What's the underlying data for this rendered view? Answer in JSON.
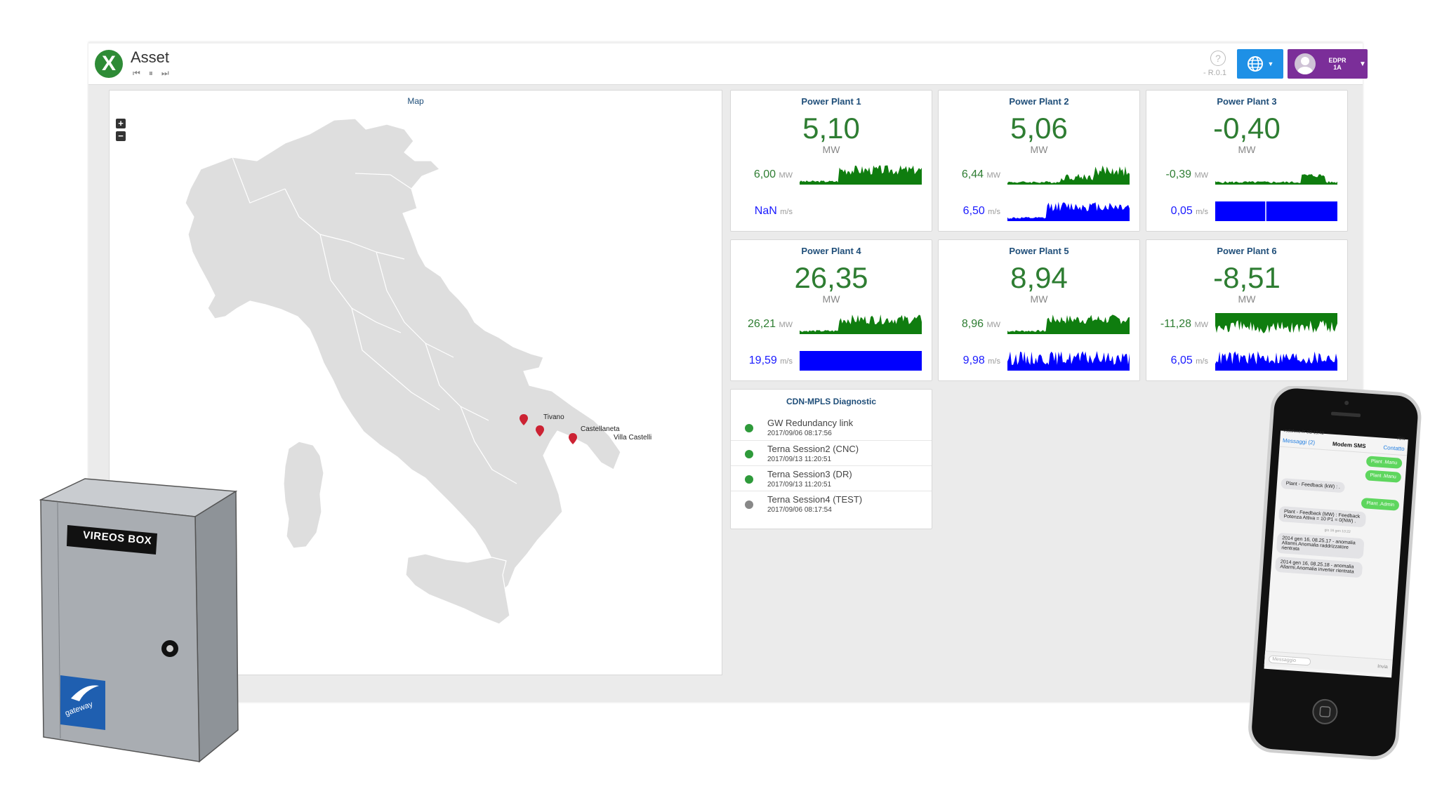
{
  "header": {
    "title": "Asset",
    "version": "- R.0.1",
    "help_icon": "?",
    "user": {
      "line1": "EDPR",
      "line2": "1A"
    }
  },
  "map": {
    "title": "Map",
    "zoom_in": "+",
    "zoom_out": "−",
    "markers": [
      "Tivano",
      "Castellaneta",
      "Villa Castelli"
    ]
  },
  "colors": {
    "power": "#0f7d0f",
    "wind": "#0000ff",
    "ok": "#2e9a3a",
    "off": "#888888",
    "accent": "#1e90e6",
    "user": "#7b2e99"
  },
  "plants": [
    {
      "name": "Power Plant 1",
      "value": "5,10",
      "unit": "MW",
      "row1": "6,00",
      "row1_unit": "MW",
      "row2": "NaN",
      "row2_unit": "m/s"
    },
    {
      "name": "Power Plant 2",
      "value": "5,06",
      "unit": "MW",
      "row1": "6,44",
      "row1_unit": "MW",
      "row2": "6,50",
      "row2_unit": "m/s"
    },
    {
      "name": "Power Plant 3",
      "value": "-0,40",
      "unit": "MW",
      "row1": "-0,39",
      "row1_unit": "MW",
      "row2": "0,05",
      "row2_unit": "m/s"
    },
    {
      "name": "Power Plant 4",
      "value": "26,35",
      "unit": "MW",
      "row1": "26,21",
      "row1_unit": "MW",
      "row2": "19,59",
      "row2_unit": "m/s"
    },
    {
      "name": "Power Plant 5",
      "value": "8,94",
      "unit": "MW",
      "row1": "8,96",
      "row1_unit": "MW",
      "row2": "9,98",
      "row2_unit": "m/s"
    },
    {
      "name": "Power Plant 6",
      "value": "-8,51",
      "unit": "MW",
      "row1": "-11,28",
      "row1_unit": "MW",
      "row2": "6,05",
      "row2_unit": "m/s"
    }
  ],
  "diagnostic": {
    "title": "CDN-MPLS Diagnostic",
    "items": [
      {
        "name": "GW Redundancy link",
        "time": "2017/09/06 08:17:56",
        "status": "ok"
      },
      {
        "name": "Terna Session2 (CNC)",
        "time": "2017/09/13 11:20:51",
        "status": "ok"
      },
      {
        "name": "Terna Session3 (DR)",
        "time": "2017/09/13 11:20:51",
        "status": "ok"
      },
      {
        "name": "Terna Session4 (TEST)",
        "time": "2017/09/06 08:17:54",
        "status": "off"
      }
    ]
  },
  "box": {
    "label": "VIREOS BOX",
    "brand": "gateway"
  },
  "phone": {
    "carrier": "vodafone IT  3G  15:42",
    "battery": "75%",
    "back": "Messaggi (2)",
    "contact_title": "Modem SMS",
    "contact_link": "Contatto",
    "date_sep": "gio 16 gen 10:22",
    "messages": [
      {
        "side": "out",
        "text": "Plant .Manu"
      },
      {
        "side": "out",
        "text": "Plant .Manu"
      },
      {
        "side": "in",
        "text": "Plant - Feedback (kW) : ."
      },
      {
        "side": "out",
        "text": "Plant .Admin"
      },
      {
        "side": "in",
        "text": "Plant - Feedback (MW) : Feedback Potenza Attiva = 10 P1 = 0(NW) ."
      },
      {
        "side": "in",
        "text": "2014 gen 16, 08.25.17 - anomalia Allarmi.Anomalia raddrizzatore rientrata"
      },
      {
        "side": "in",
        "text": "2014 gen 16, 08.25.18 - anomalia Allarmi.Anomalia inverter rientrata"
      }
    ],
    "input_placeholder": "Messaggio",
    "send": "Invia"
  }
}
